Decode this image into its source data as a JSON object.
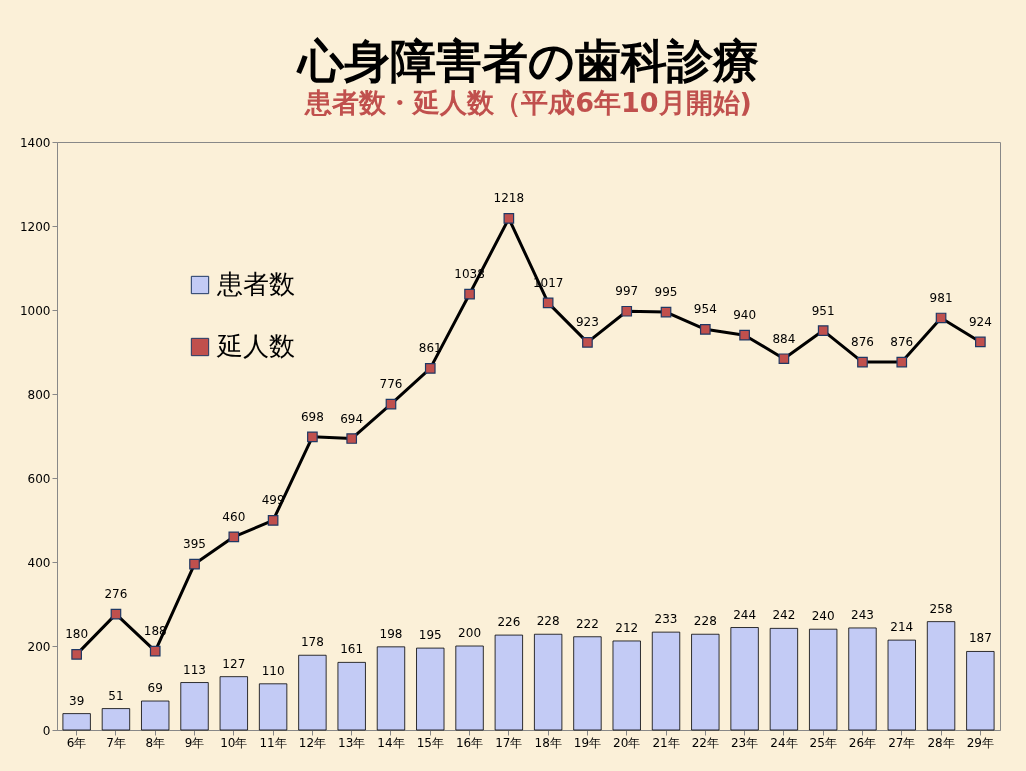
{
  "chart_data": {
    "type": "bar",
    "title": "心身障害者の歯科診療",
    "subtitle": "患者数・延人数（平成6年10月開始)",
    "categories": [
      "6年",
      "7年",
      "8年",
      "9年",
      "10年",
      "11年",
      "12年",
      "13年",
      "14年",
      "15年",
      "16年",
      "17年",
      "18年",
      "19年",
      "20年",
      "21年",
      "22年",
      "23年",
      "24年",
      "25年",
      "26年",
      "27年",
      "28年",
      "29年"
    ],
    "series": [
      {
        "name": "患者数",
        "color": "#c3cbf5",
        "values": [
          39,
          51,
          69,
          113,
          127,
          110,
          178,
          161,
          198,
          195,
          200,
          226,
          228,
          222,
          212,
          233,
          228,
          244,
          242,
          240,
          243,
          214,
          258,
          187
        ]
      },
      {
        "name": "延人数",
        "type": "line",
        "color": "#c0504d",
        "values": [
          180,
          276,
          188,
          395,
          460,
          499,
          698,
          694,
          776,
          861,
          1038,
          1218,
          1017,
          923,
          997,
          995,
          954,
          940,
          884,
          951,
          876,
          876,
          981,
          924
        ]
      }
    ],
    "ylim": [
      0,
      1400
    ],
    "yticks": [
      0,
      200,
      400,
      600,
      800,
      1000,
      1200,
      1400
    ],
    "grid": false,
    "legend": "top left",
    "marker": "square",
    "data_labels": true
  }
}
